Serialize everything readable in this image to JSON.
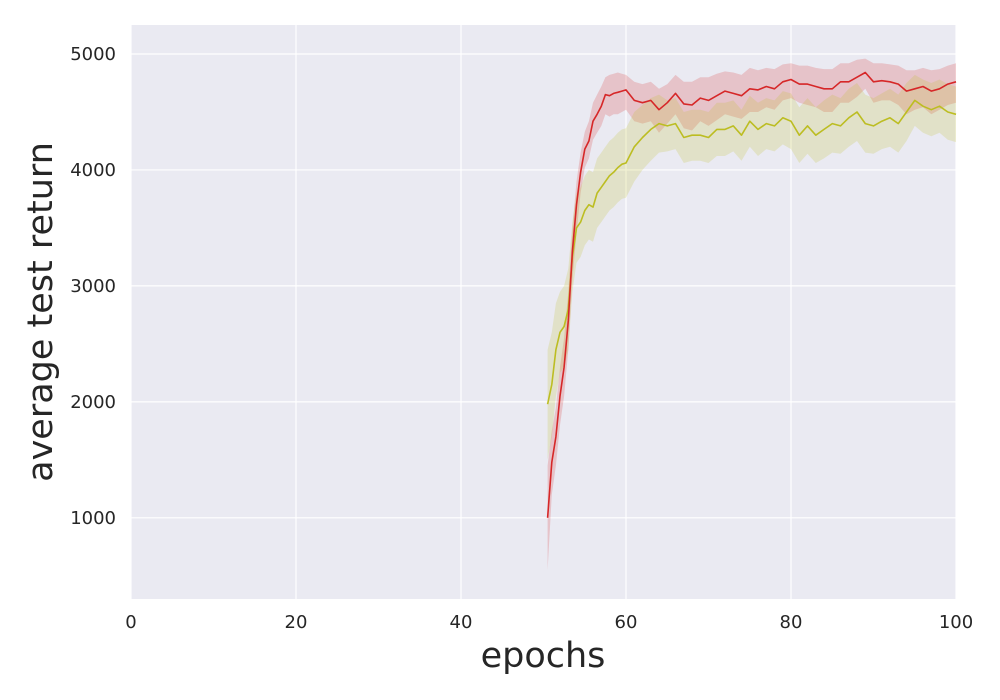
{
  "chart_data": {
    "type": "line",
    "title": "",
    "xlabel": "epochs",
    "ylabel": "average test return",
    "xlim": [
      0,
      100
    ],
    "ylim": [
      300,
      5250
    ],
    "xticks": [
      0,
      20,
      40,
      60,
      80,
      100
    ],
    "yticks": [
      1000,
      2000,
      3000,
      4000,
      5000
    ],
    "grid": true,
    "legend": "none",
    "background_color": "#eaeaf2",
    "series": [
      {
        "color": "#d62728",
        "x": [
          50.5,
          51,
          51.5,
          52,
          52.5,
          53,
          53.5,
          54,
          54.5,
          55,
          55.5,
          56,
          56.5,
          57,
          57.5,
          58,
          58.5,
          59,
          59.5,
          60,
          61,
          62,
          63,
          64,
          65,
          66,
          67,
          68,
          69,
          70,
          71,
          72,
          73,
          74,
          75,
          76,
          77,
          78,
          79,
          80,
          81,
          82,
          83,
          84,
          85,
          86,
          87,
          88,
          89,
          90,
          91,
          92,
          93,
          94,
          95,
          96,
          97,
          98,
          99,
          100
        ],
        "y": [
          1000,
          1480,
          1700,
          2050,
          2300,
          2700,
          3300,
          3700,
          3980,
          4180,
          4250,
          4420,
          4480,
          4550,
          4650,
          4640,
          4660,
          4670,
          4680,
          4690,
          4600,
          4580,
          4600,
          4520,
          4580,
          4660,
          4570,
          4560,
          4620,
          4600,
          4640,
          4680,
          4660,
          4640,
          4700,
          4690,
          4720,
          4700,
          4760,
          4780,
          4740,
          4740,
          4720,
          4700,
          4700,
          4760,
          4760,
          4800,
          4840,
          4760,
          4770,
          4760,
          4740,
          4680,
          4700,
          4720,
          4680,
          4700,
          4740,
          4760
        ],
        "upper": [
          1450,
          1750,
          1950,
          2300,
          2550,
          2950,
          3500,
          3900,
          4150,
          4330,
          4420,
          4580,
          4650,
          4720,
          4800,
          4820,
          4830,
          4840,
          4830,
          4820,
          4760,
          4740,
          4760,
          4700,
          4740,
          4820,
          4760,
          4760,
          4800,
          4800,
          4830,
          4850,
          4840,
          4820,
          4880,
          4860,
          4880,
          4870,
          4910,
          4920,
          4900,
          4900,
          4880,
          4870,
          4870,
          4920,
          4920,
          4950,
          4960,
          4920,
          4920,
          4910,
          4900,
          4860,
          4860,
          4880,
          4860,
          4870,
          4900,
          4920
        ],
        "lower": [
          550,
          1200,
          1450,
          1800,
          2050,
          2450,
          3050,
          3450,
          3800,
          4020,
          4100,
          4260,
          4320,
          4380,
          4480,
          4460,
          4480,
          4480,
          4500,
          4520,
          4420,
          4400,
          4420,
          4320,
          4400,
          4480,
          4360,
          4340,
          4420,
          4380,
          4430,
          4480,
          4460,
          4440,
          4500,
          4500,
          4540,
          4520,
          4600,
          4620,
          4580,
          4560,
          4540,
          4500,
          4500,
          4580,
          4580,
          4630,
          4700,
          4580,
          4600,
          4600,
          4560,
          4480,
          4520,
          4540,
          4480,
          4520,
          4560,
          4580
        ]
      },
      {
        "color": "#bcbd22",
        "x": [
          50.5,
          51,
          51.5,
          52,
          52.5,
          53,
          53.5,
          54,
          54.5,
          55,
          55.5,
          56,
          56.5,
          57,
          57.5,
          58,
          58.5,
          59,
          59.5,
          60,
          61,
          62,
          63,
          64,
          65,
          66,
          67,
          68,
          69,
          70,
          71,
          72,
          73,
          74,
          75,
          76,
          77,
          78,
          79,
          80,
          81,
          82,
          83,
          84,
          85,
          86,
          87,
          88,
          89,
          90,
          91,
          92,
          93,
          94,
          95,
          96,
          97,
          98,
          99,
          100
        ],
        "y": [
          1980,
          2150,
          2450,
          2600,
          2650,
          2800,
          3250,
          3500,
          3550,
          3650,
          3700,
          3680,
          3800,
          3850,
          3900,
          3950,
          3980,
          4020,
          4050,
          4060,
          4200,
          4280,
          4350,
          4400,
          4380,
          4400,
          4280,
          4300,
          4300,
          4280,
          4350,
          4350,
          4380,
          4300,
          4420,
          4350,
          4400,
          4380,
          4450,
          4420,
          4300,
          4380,
          4300,
          4350,
          4400,
          4380,
          4450,
          4500,
          4400,
          4380,
          4420,
          4450,
          4400,
          4500,
          4600,
          4550,
          4520,
          4550,
          4500,
          4480
        ],
        "upper": [
          2450,
          2600,
          2850,
          2950,
          3000,
          3150,
          3550,
          3800,
          3850,
          3950,
          4000,
          3980,
          4100,
          4150,
          4200,
          4250,
          4280,
          4320,
          4350,
          4360,
          4500,
          4560,
          4620,
          4650,
          4600,
          4620,
          4500,
          4520,
          4520,
          4500,
          4580,
          4580,
          4600,
          4520,
          4640,
          4580,
          4620,
          4600,
          4680,
          4660,
          4540,
          4620,
          4540,
          4600,
          4650,
          4620,
          4700,
          4750,
          4650,
          4620,
          4660,
          4700,
          4650,
          4750,
          4820,
          4780,
          4750,
          4780,
          4740,
          4720
        ],
        "lower": [
          1500,
          1700,
          2050,
          2250,
          2300,
          2450,
          2950,
          3200,
          3250,
          3350,
          3400,
          3380,
          3500,
          3550,
          3600,
          3650,
          3680,
          3720,
          3750,
          3760,
          3900,
          4000,
          4080,
          4150,
          4160,
          4180,
          4060,
          4080,
          4080,
          4060,
          4120,
          4120,
          4160,
          4080,
          4200,
          4120,
          4180,
          4160,
          4220,
          4180,
          4060,
          4140,
          4060,
          4100,
          4150,
          4140,
          4200,
          4250,
          4150,
          4140,
          4180,
          4200,
          4150,
          4250,
          4380,
          4320,
          4290,
          4320,
          4260,
          4240
        ]
      }
    ]
  }
}
